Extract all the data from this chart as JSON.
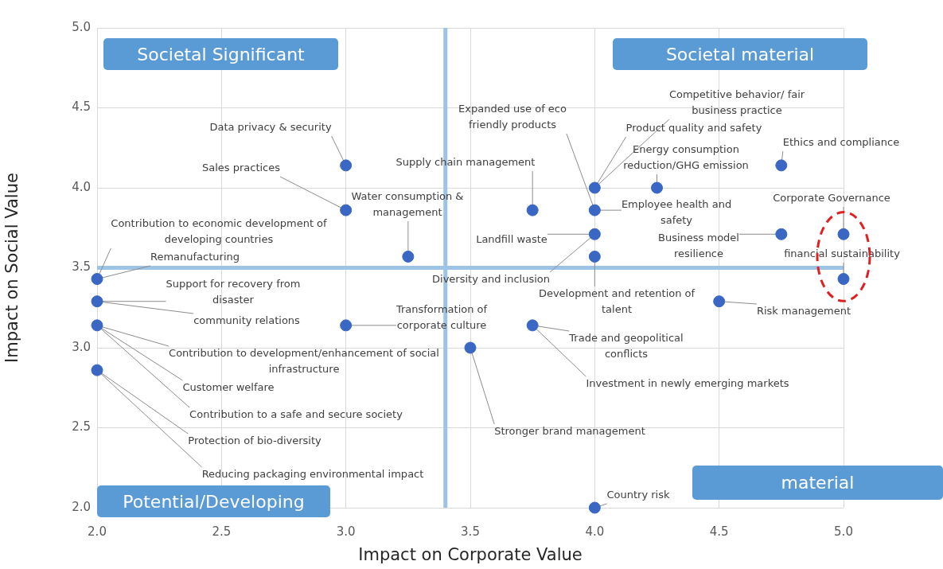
{
  "chart_data": {
    "type": "scatter",
    "xlabel": "Impact on Corporate Value",
    "ylabel": "Impact on Social Value",
    "xlim": [
      2,
      5
    ],
    "ylim": [
      2,
      5
    ],
    "xticks": [
      {
        "value": 2,
        "label": "2.0"
      },
      {
        "value": 2.5,
        "label": "2.5"
      },
      {
        "value": 3,
        "label": "3.0"
      },
      {
        "value": 3.5,
        "label": "3.5"
      },
      {
        "value": 4,
        "label": "4.0"
      },
      {
        "value": 4.5,
        "label": "4.5"
      },
      {
        "value": 5,
        "label": "5.0"
      }
    ],
    "yticks": [
      {
        "value": 2,
        "label": "2.0"
      },
      {
        "value": 2.5,
        "label": "2.5"
      },
      {
        "value": 3,
        "label": "3.0"
      },
      {
        "value": 3.5,
        "label": "3.5"
      },
      {
        "value": 4,
        "label": "4.0"
      },
      {
        "value": 4.5,
        "label": "4.5"
      },
      {
        "value": 5,
        "label": "5.0"
      }
    ],
    "grid": true,
    "legend": false,
    "marker": "circle",
    "x": [
      3,
      3,
      3.25,
      2,
      2,
      2,
      2,
      3.75,
      4,
      4.25,
      4,
      4,
      4,
      4.75,
      5,
      4.75,
      5,
      4.5,
      3,
      3.5,
      3.75,
      4
    ],
    "series": [
      {
        "color": "#3a66c4",
        "values": [
          4.14,
          3.86,
          3.57,
          3.43,
          3.29,
          3.14,
          2.86,
          3.86,
          4,
          4,
          3.86,
          3.71,
          3.57,
          4.14,
          3.71,
          3.71,
          3.43,
          3.29,
          3.14,
          3,
          3.14,
          2
        ]
      }
    ],
    "ref_lines": [
      {
        "axis": "x",
        "value": 3.4,
        "color": "#9dc3e6"
      },
      {
        "axis": "y",
        "value": 3.5,
        "color": "#9dc3e6"
      }
    ],
    "annotations": [
      "Societal Significant",
      "Societal material",
      "Potential/Developing",
      "material",
      {
        "text": "Data privacy & security",
        "x": 3,
        "y": 4.14
      },
      {
        "text": "Sales practices",
        "x": 3,
        "y": 3.86
      },
      {
        "text": "Contribution to economic development of developing countries",
        "x": 2,
        "y": 3.43
      },
      {
        "text": "Remanufacturing",
        "x": 2,
        "y": 3.43
      },
      {
        "text": "Support for recovery from disaster",
        "x": 2,
        "y": 3.29
      },
      {
        "text": "community relations",
        "x": 2,
        "y": 3.29
      },
      {
        "text": "Contribution to development/enhancement of social infrastructure",
        "x": 2,
        "y": 3.14
      },
      {
        "text": "Customer welfare",
        "x": 2,
        "y": 3.14
      },
      {
        "text": "Contribution to a safe and secure society",
        "x": 2,
        "y": 3.14
      },
      {
        "text": "Protection of bio-diversity",
        "x": 2,
        "y": 2.86
      },
      {
        "text": "Reducing packaging environmental impact",
        "x": 2,
        "y": 2.86
      },
      {
        "text": "Water consumption & management",
        "x": 3.25,
        "y": 3.57
      },
      {
        "text": "Supply chain management",
        "x": 3.75,
        "y": 3.86
      },
      {
        "text": "Expanded use of eco friendly products",
        "x": 4,
        "y": 3.86
      },
      {
        "text": "Competitive behavior/ fair business practice",
        "x": 4,
        "y": 4
      },
      {
        "text": "Product quality and safety",
        "x": 4,
        "y": 4
      },
      {
        "text": "Energy consumption reduction/GHG emission",
        "x": 4.25,
        "y": 4
      },
      {
        "text": "Employee health and safety",
        "x": 4,
        "y": 3.86
      },
      {
        "text": "Landfill waste",
        "x": 4,
        "y": 3.71
      },
      {
        "text": "Diversity and inclusion",
        "x": 4,
        "y": 3.71
      },
      {
        "text": "Development and retention of talent",
        "x": 4,
        "y": 3.57
      },
      {
        "text": "Ethics and compliance",
        "x": 4.75,
        "y": 4.14
      },
      {
        "text": "Corporate Governance",
        "x": 5,
        "y": 3.71
      },
      {
        "text": "Business model resilience",
        "x": 4.75,
        "y": 3.71
      },
      {
        "text": "financial sustainability",
        "x": 5,
        "y": 3.43
      },
      {
        "text": "Risk management",
        "x": 4.5,
        "y": 3.29
      },
      {
        "text": "Transformation of corporate culture",
        "x": 3,
        "y": 3.14
      },
      {
        "text": "Stronger brand management",
        "x": 3.5,
        "y": 3
      },
      {
        "text": "Trade and geopolitical conflicts",
        "x": 3.75,
        "y": 3.14
      },
      {
        "text": "Investment in newly emerging markets",
        "x": 3.75,
        "y": 3.14
      },
      {
        "text": "Country risk",
        "x": 4,
        "y": 2
      }
    ]
  }
}
